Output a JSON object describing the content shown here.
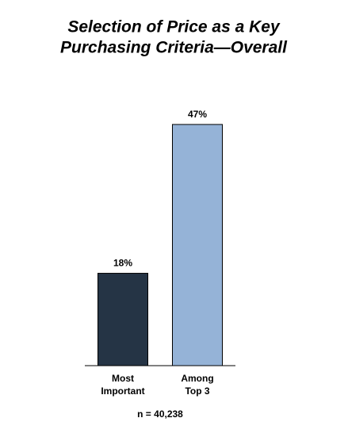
{
  "chart_data": {
    "type": "bar",
    "title": [
      "Selection of Price as a Key",
      "Purchasing Criteria—Overall"
    ],
    "categories": [
      [
        "Most",
        "Important"
      ],
      [
        "Among",
        "Top 3"
      ]
    ],
    "values": [
      18,
      47
    ],
    "value_labels": [
      "18%",
      "47%"
    ],
    "colors": [
      "#253445",
      "#95b3d7"
    ],
    "note": "n = 40,238"
  }
}
